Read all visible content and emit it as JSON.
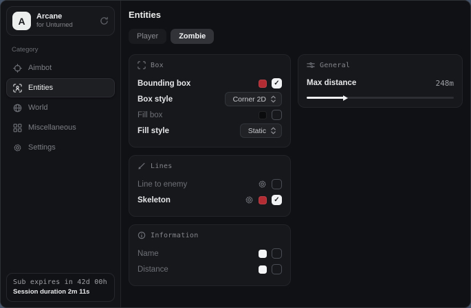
{
  "app": {
    "title": "Arcane",
    "subtitle": "for Unturned",
    "logo_letter": "A"
  },
  "icons": {
    "check": "✓"
  },
  "colors": {
    "accent_red": "#b32b33",
    "checkbox_checked": "#f1f2f3"
  },
  "sidebar": {
    "category_label": "Category",
    "items": [
      {
        "label": "Aimbot",
        "icon": "crosshair-icon",
        "active": false
      },
      {
        "label": "Entities",
        "icon": "entity-scan-icon",
        "active": true
      },
      {
        "label": "World",
        "icon": "globe-icon",
        "active": false
      },
      {
        "label": "Miscellaneous",
        "icon": "grid-icon",
        "active": false
      },
      {
        "label": "Settings",
        "icon": "gear-icon",
        "active": false
      }
    ],
    "status": {
      "sub_expiry": "Sub expires in 42d 00h",
      "session_duration": "Session duration 2m 11s"
    }
  },
  "main": {
    "title": "Entities",
    "tabs": [
      {
        "label": "Player",
        "active": false
      },
      {
        "label": "Zombie",
        "active": true
      }
    ],
    "box": {
      "header": "Box",
      "rows": [
        {
          "label": "Bounding box",
          "swatch": "#b32b33",
          "checked": true
        },
        {
          "label": "Box style",
          "value": "Corner 2D"
        },
        {
          "label": "Fill box",
          "swatch": "#0b0c0e",
          "checked": false
        },
        {
          "label": "Fill style",
          "value": "Static"
        }
      ]
    },
    "lines": {
      "header": "Lines",
      "rows": [
        {
          "label": "Line to enemy",
          "checked": false
        },
        {
          "label": "Skeleton",
          "swatch": "#b32b33",
          "checked": true
        }
      ]
    },
    "information": {
      "header": "Information",
      "rows": [
        {
          "label": "Name",
          "swatch": "#f4f5f6",
          "checked": false
        },
        {
          "label": "Distance",
          "swatch": "#f4f5f6",
          "checked": false
        }
      ]
    },
    "general": {
      "header": "General",
      "max_distance_label": "Max distance",
      "max_distance_value": "248m",
      "slider_percent": 25
    }
  }
}
